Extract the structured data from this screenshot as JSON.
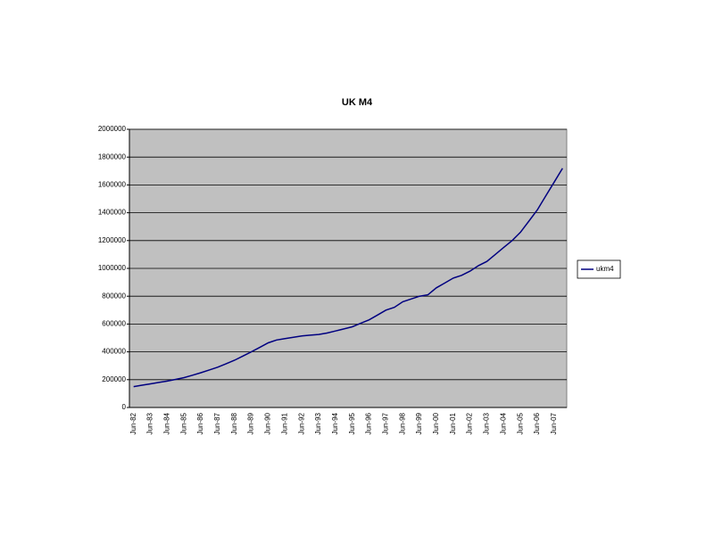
{
  "chart_data": {
    "type": "line",
    "title": "UK M4",
    "categories": [
      "Jun-82",
      null,
      "Jun-83",
      null,
      "Jun-84",
      null,
      "Jun-85",
      null,
      "Jun-86",
      null,
      "Jun-87",
      null,
      "Jun-88",
      null,
      "Jun-89",
      null,
      "Jun-90",
      null,
      "Jun-91",
      null,
      "Jun-92",
      null,
      "Jun-93",
      null,
      "Jun-94",
      null,
      "Jun-95",
      null,
      "Jun-96",
      null,
      "Jun-97",
      null,
      "Jun-98",
      null,
      "Jun-99",
      null,
      "Jun-00",
      null,
      "Jun-01",
      null,
      "Jun-02",
      null,
      "Jun-03",
      null,
      "Jun-04",
      null,
      "Jun-05",
      null,
      "Jun-06",
      null,
      "Jun-07",
      null
    ],
    "series": [
      {
        "name": "ukm4",
        "color": "#000080",
        "values": [
          150000,
          160000,
          170000,
          180000,
          190000,
          202000,
          215000,
          232000,
          250000,
          270000,
          290000,
          315000,
          340000,
          370000,
          400000,
          432000,
          465000,
          485000,
          495000,
          505000,
          515000,
          520000,
          525000,
          535000,
          550000,
          565000,
          580000,
          605000,
          630000,
          665000,
          700000,
          720000,
          760000,
          780000,
          800000,
          810000,
          860000,
          895000,
          930000,
          950000,
          980000,
          1020000,
          1050000,
          1100000,
          1150000,
          1200000,
          1260000,
          1340000,
          1420000,
          1520000,
          1620000,
          1720000
        ]
      }
    ],
    "ylim": [
      0,
      2000000
    ],
    "yticks": [
      0,
      200000,
      400000,
      600000,
      800000,
      1000000,
      1200000,
      1400000,
      1600000,
      1800000,
      2000000
    ],
    "grid": true,
    "legend": "right",
    "plot_background": "#c0c0c0"
  }
}
